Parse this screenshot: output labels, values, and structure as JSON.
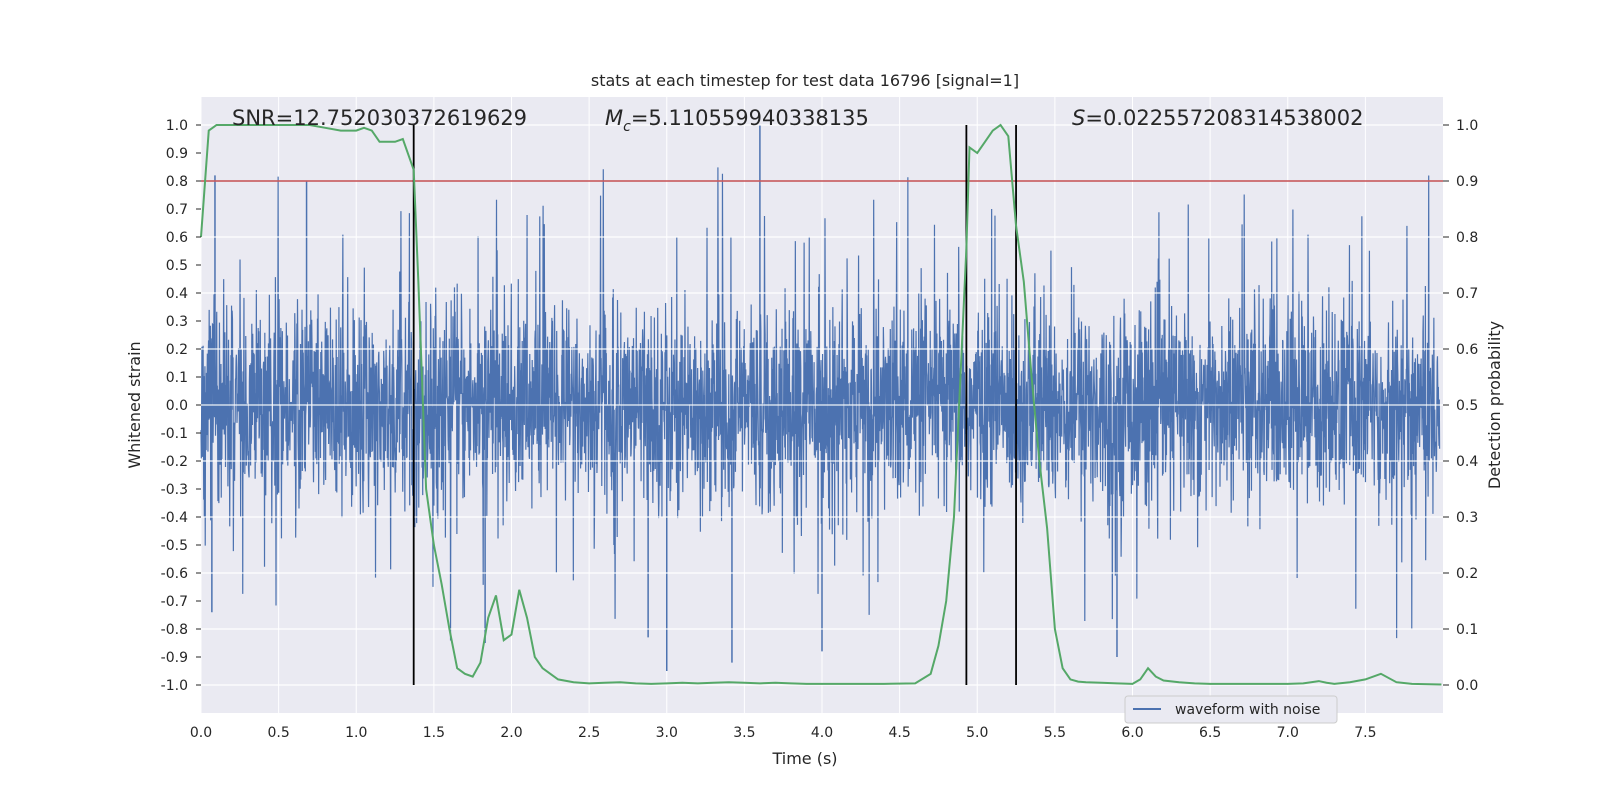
{
  "chart_data": {
    "type": "line",
    "title": "stats at each timestep for test data 16796 [signal=1]",
    "xlabel": "Time (s)",
    "ylabel": "Whitened strain",
    "ylabel_right": "Detection probability",
    "xlim": [
      0.0,
      8.0
    ],
    "ylim": [
      -1.1,
      1.1
    ],
    "ylim_right": [
      -0.05,
      1.05
    ],
    "x_ticks": [
      0.0,
      0.5,
      1.0,
      1.5,
      2.0,
      2.5,
      3.0,
      3.5,
      4.0,
      4.5,
      5.0,
      5.5,
      6.0,
      6.5,
      7.0,
      7.5
    ],
    "x_tick_labels": [
      "0.0",
      "0.5",
      "1.0",
      "1.5",
      "2.0",
      "2.5",
      "3.0",
      "3.5",
      "4.0",
      "4.5",
      "5.0",
      "5.5",
      "6.0",
      "6.5",
      "7.0",
      "7.5"
    ],
    "y_ticks": [
      1.0,
      0.9,
      0.8,
      0.7,
      0.6,
      0.5,
      0.4,
      0.3,
      0.2,
      0.1,
      0.0,
      -0.1,
      -0.2,
      -0.3,
      -0.4,
      -0.5,
      -0.6,
      -0.7,
      -0.8,
      -0.9,
      -1.0
    ],
    "y_tick_labels": [
      "1.0",
      "0.9",
      "0.8",
      "0.7",
      "0.6",
      "0.5",
      "0.4",
      "0.3",
      "0.2",
      "0.1",
      "0.0",
      "-0.1",
      "-0.2",
      "-0.3",
      "-0.4",
      "-0.5",
      "-0.6",
      "-0.7",
      "-0.8",
      "-0.9",
      "-1.0"
    ],
    "y_right_ticks": [
      1.0,
      0.9,
      0.8,
      0.7,
      0.6,
      0.5,
      0.4,
      0.3,
      0.2,
      0.1,
      0.0
    ],
    "y_right_tick_labels": [
      "1.0",
      "0.9",
      "0.8",
      "0.7",
      "0.6",
      "0.5",
      "0.4",
      "0.3",
      "0.2",
      "0.1",
      "0.0"
    ],
    "annotations": {
      "snr": "SNR=12.752030372619629",
      "mc_symbol": "M",
      "mc_sub": "c",
      "mc_value": "=5.110559940338135",
      "s_symbol": "S",
      "s_value": "=0.022557208314538002"
    },
    "threshold": {
      "value": 0.9,
      "axis": "right",
      "color": "#c44e52"
    },
    "vlines": [
      1.37,
      4.93,
      5.25
    ],
    "legend": {
      "label": "waveform with noise",
      "position": "lower-right"
    },
    "colors": {
      "waveform": "#4c72b0",
      "probability": "#55a868",
      "threshold": "#c44e52",
      "vline": "#000000",
      "background": "#eaeaf2",
      "grid": "#ffffff"
    },
    "series": [
      {
        "name": "waveform with noise",
        "axis": "left",
        "style": "noise",
        "n_samples": 4096,
        "typical_amplitude": [
          -0.4,
          0.4
        ],
        "peak_range": [
          -0.95,
          1.0
        ]
      },
      {
        "name": "detection probability",
        "axis": "right",
        "x": [
          0.0,
          0.05,
          0.1,
          0.2,
          0.3,
          0.4,
          0.5,
          0.6,
          0.7,
          0.8,
          0.9,
          1.0,
          1.05,
          1.1,
          1.15,
          1.2,
          1.25,
          1.3,
          1.37,
          1.4,
          1.45,
          1.5,
          1.55,
          1.6,
          1.65,
          1.7,
          1.75,
          1.8,
          1.85,
          1.9,
          1.95,
          2.0,
          2.05,
          2.1,
          2.15,
          2.2,
          2.25,
          2.3,
          2.4,
          2.5,
          2.6,
          2.7,
          2.8,
          2.9,
          3.0,
          3.1,
          3.2,
          3.3,
          3.4,
          3.5,
          3.6,
          3.7,
          3.8,
          3.9,
          4.0,
          4.2,
          4.4,
          4.6,
          4.7,
          4.75,
          4.8,
          4.85,
          4.9,
          4.93,
          4.95,
          5.0,
          5.05,
          5.1,
          5.15,
          5.2,
          5.25,
          5.3,
          5.35,
          5.4,
          5.45,
          5.5,
          5.55,
          5.6,
          5.65,
          5.7,
          5.8,
          5.9,
          6.0,
          6.05,
          6.1,
          6.15,
          6.2,
          6.3,
          6.4,
          6.5,
          6.6,
          6.8,
          7.0,
          7.1,
          7.2,
          7.25,
          7.3,
          7.4,
          7.5,
          7.6,
          7.7,
          7.8,
          7.99
        ],
        "values": [
          0.8,
          0.99,
          1.0,
          1.0,
          1.0,
          1.0,
          1.0,
          1.0,
          1.0,
          0.995,
          0.99,
          0.99,
          0.995,
          0.99,
          0.97,
          0.97,
          0.97,
          0.975,
          0.92,
          0.72,
          0.35,
          0.25,
          0.18,
          0.1,
          0.03,
          0.02,
          0.015,
          0.04,
          0.12,
          0.16,
          0.08,
          0.09,
          0.17,
          0.12,
          0.05,
          0.03,
          0.02,
          0.01,
          0.005,
          0.003,
          0.004,
          0.005,
          0.003,
          0.002,
          0.003,
          0.004,
          0.003,
          0.004,
          0.005,
          0.004,
          0.003,
          0.004,
          0.003,
          0.002,
          0.002,
          0.002,
          0.002,
          0.003,
          0.02,
          0.07,
          0.15,
          0.3,
          0.6,
          0.78,
          0.96,
          0.95,
          0.97,
          0.99,
          1.0,
          0.98,
          0.82,
          0.72,
          0.55,
          0.4,
          0.28,
          0.1,
          0.03,
          0.01,
          0.006,
          0.005,
          0.004,
          0.003,
          0.002,
          0.01,
          0.03,
          0.015,
          0.008,
          0.005,
          0.003,
          0.002,
          0.002,
          0.002,
          0.002,
          0.003,
          0.007,
          0.004,
          0.002,
          0.005,
          0.01,
          0.02,
          0.005,
          0.002,
          0.001
        ]
      }
    ]
  }
}
